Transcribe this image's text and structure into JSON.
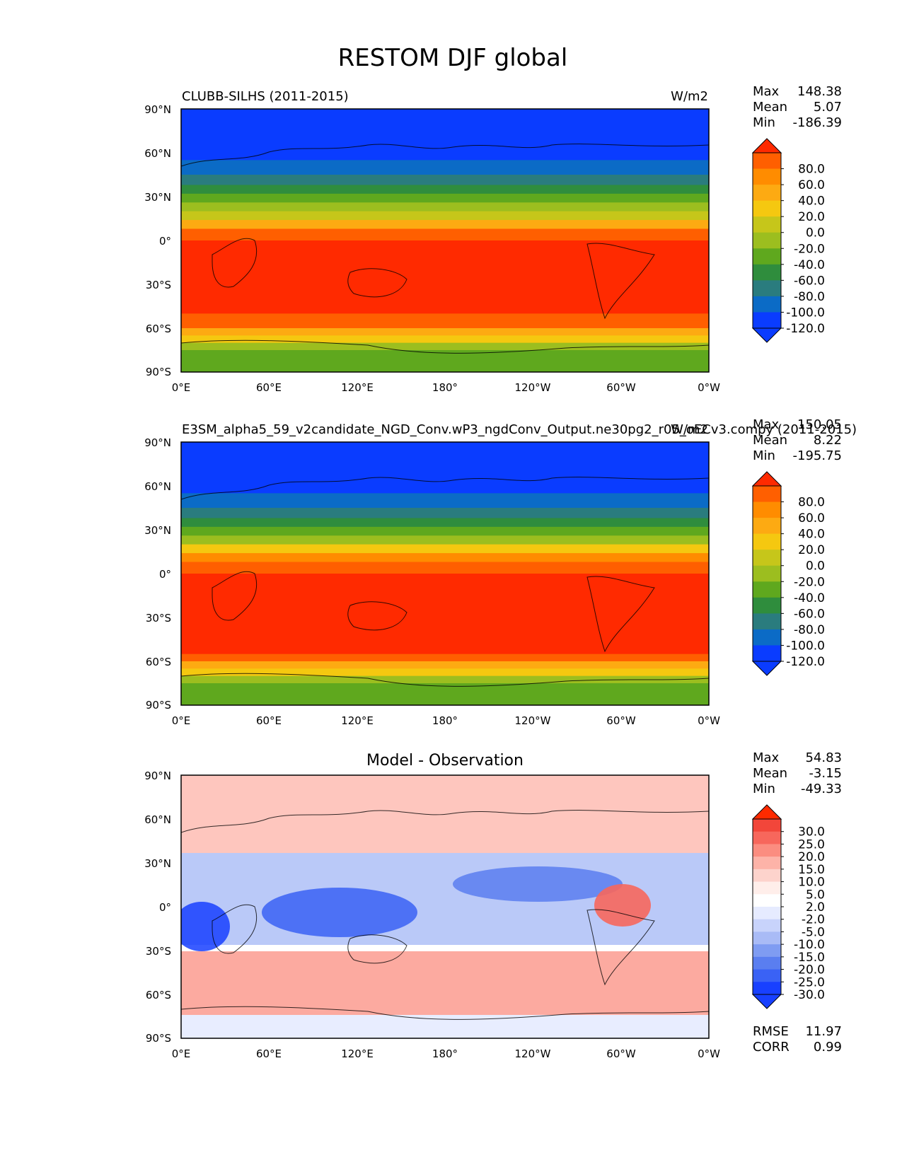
{
  "title": "RESTOM DJF global",
  "colors": {
    "ocean_deep_blue": "#0a3cff",
    "land_outline": "#000000",
    "fig_bg": "#ffffff"
  },
  "axes": {
    "lon_ticks": [
      "0°E",
      "60°E",
      "120°E",
      "180°",
      "120°W",
      "60°W",
      "0°W"
    ],
    "lat_ticks": [
      "90°N",
      "60°N",
      "30°N",
      "0°",
      "30°S",
      "60°S",
      "90°S"
    ]
  },
  "chart_data": [
    {
      "type": "heatmap",
      "panel": "test",
      "title_left": "CLUBB-SILHS (2011-2015)",
      "title_right": "W/m2",
      "stats": [
        {
          "label": "Max",
          "value": "148.38"
        },
        {
          "label": "Mean",
          "value": "5.07"
        },
        {
          "label": "Min",
          "value": "-186.39"
        }
      ],
      "colorbar": {
        "labels": [
          "80.0",
          "60.0",
          "40.0",
          "20.0",
          "0.0",
          "-20.0",
          "-40.0",
          "-60.0",
          "-80.0",
          "-100.0",
          "-120.0"
        ],
        "colors": [
          "#ff2a00",
          "#ff5f00",
          "#ff8c00",
          "#fdaa12",
          "#f5c810",
          "#c6c61a",
          "#9cbe1f",
          "#5fa81e",
          "#2f8d3d",
          "#2a7c7e",
          "#0b6bc6",
          "#0a3cff",
          "#0a3cff"
        ]
      },
      "zonal_profile": {
        "lat": [
          90,
          70,
          55,
          45,
          38,
          32,
          26,
          20,
          14,
          8,
          0,
          -10,
          -20,
          -30,
          -40,
          -50,
          -55,
          -60,
          -65,
          -70,
          -75,
          -90
        ],
        "value": [
          -160,
          -140,
          -120,
          -100,
          -80,
          -60,
          -40,
          -20,
          10,
          50,
          90,
          100,
          100,
          100,
          95,
          85,
          70,
          50,
          20,
          -20,
          -40,
          -50
        ]
      }
    },
    {
      "type": "heatmap",
      "panel": "reference",
      "title_left": "E3SM_alpha5_59_v2candidate_NGD_Conv.wP3_ngdConv_Output.ne30pg2_r05_oECv3.compy (2011-2015)",
      "title_right": "W/m2",
      "stats": [
        {
          "label": "Max",
          "value": "150.05"
        },
        {
          "label": "Mean",
          "value": "8.22"
        },
        {
          "label": "Min",
          "value": "-195.75"
        }
      ],
      "colorbar": {
        "labels": [
          "80.0",
          "60.0",
          "40.0",
          "20.0",
          "0.0",
          "-20.0",
          "-40.0",
          "-60.0",
          "-80.0",
          "-100.0",
          "-120.0"
        ],
        "colors": [
          "#ff2a00",
          "#ff5f00",
          "#ff8c00",
          "#fdaa12",
          "#f5c810",
          "#c6c61a",
          "#9cbe1f",
          "#5fa81e",
          "#2f8d3d",
          "#2a7c7e",
          "#0b6bc6",
          "#0a3cff",
          "#0a3cff"
        ]
      },
      "zonal_profile": {
        "lat": [
          90,
          70,
          55,
          45,
          38,
          32,
          26,
          20,
          14,
          8,
          0,
          -10,
          -20,
          -30,
          -40,
          -50,
          -55,
          -60,
          -65,
          -70,
          -75,
          -90
        ],
        "value": [
          -165,
          -145,
          -125,
          -100,
          -80,
          -60,
          -40,
          -15,
          20,
          60,
          95,
          105,
          105,
          105,
          100,
          88,
          72,
          52,
          22,
          -22,
          -40,
          -48
        ]
      }
    },
    {
      "type": "heatmap",
      "panel": "difference",
      "title_center": "Model - Observation",
      "stats": [
        {
          "label": "Max",
          "value": "54.83"
        },
        {
          "label": "Mean",
          "value": "-3.15"
        },
        {
          "label": "Min",
          "value": "-49.33"
        }
      ],
      "metrics": [
        {
          "label": "RMSE",
          "value": "11.97"
        },
        {
          "label": "CORR",
          "value": "0.99"
        }
      ],
      "colorbar": {
        "labels": [
          "30.0",
          "25.0",
          "20.0",
          "15.0",
          "10.0",
          "5.0",
          "2.0",
          "-2.0",
          "-5.0",
          "-10.0",
          "-15.0",
          "-20.0",
          "-25.0",
          "-30.0"
        ],
        "colors": [
          "#ff2a00",
          "#f2463a",
          "#f7675c",
          "#fb8d80",
          "#fdb3a8",
          "#fdd3cc",
          "#ffeeea",
          "#ffffff",
          "#e6ebff",
          "#c8d3fb",
          "#a9bbf6",
          "#7f9cf2",
          "#5a7ef0",
          "#3a62f5",
          "#1840ff",
          "#1840ff"
        ]
      }
    }
  ]
}
